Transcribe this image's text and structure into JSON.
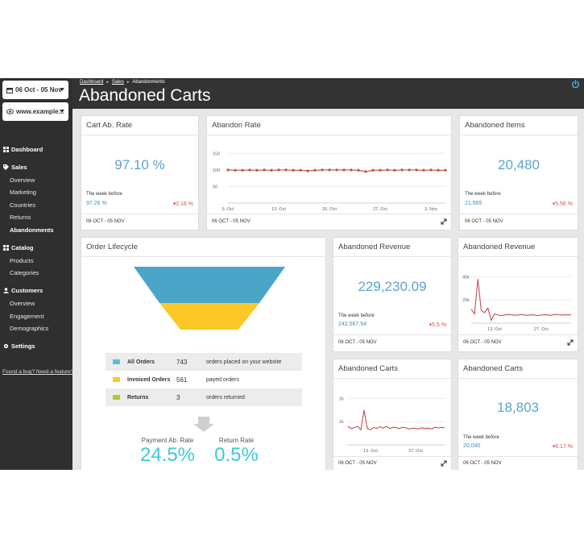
{
  "sidebar": {
    "date_range": "06 Oct - 05 Nov",
    "site": "www.example...",
    "sections": [
      {
        "label": "Dashboard",
        "icon": "grid-icon",
        "items": []
      },
      {
        "label": "Sales",
        "icon": "tag-icon",
        "items": [
          "Overview",
          "Marketing",
          "Countries",
          "Returns",
          "Abandonments"
        ]
      },
      {
        "label": "Catalog",
        "icon": "catalog-icon",
        "items": [
          "Products",
          "Categories"
        ]
      },
      {
        "label": "Customers",
        "icon": "user-icon",
        "items": [
          "Overview",
          "Engagement",
          "Demographics"
        ]
      },
      {
        "label": "Settings",
        "icon": "gear-icon",
        "items": []
      }
    ],
    "bug_link": "Found a bug? Need a feature?"
  },
  "header": {
    "breadcrumbs": [
      "Dashboard",
      "Sales",
      "Abandonments"
    ],
    "title": "Abandoned Carts"
  },
  "cards": {
    "cart_ab_rate": {
      "title": "Cart Ab. Rate",
      "value": "97.10 %",
      "week_before_label": "The week before",
      "week_before_value": "97.26 %",
      "change": "0.16 %",
      "footer": "06 OCT - 05 NOV"
    },
    "abandon_rate": {
      "title": "Abandon Rate",
      "footer": "06 OCT - 05 NOV",
      "y_ticks": [
        "150",
        "100",
        "50"
      ],
      "x_ticks": [
        "6. Oct",
        "13. Oct",
        "20. Oct",
        "27. Oct",
        "3. Nov"
      ]
    },
    "abandoned_items": {
      "title": "Abandoned Items",
      "value": "20,480",
      "week_before_label": "The week before",
      "week_before_value": "21,685",
      "change": "5.56 %",
      "footer": "06 OCT - 05 NOV"
    },
    "order_lifecycle": {
      "title": "Order Lifecycle",
      "rows": [
        {
          "name": "All Orders",
          "count": "743",
          "desc": "orders placed on your website",
          "color": "#4dc3dc"
        },
        {
          "name": "Invoiced Orders",
          "count": "561",
          "desc": "payed orders",
          "color": "#f9c82b"
        },
        {
          "name": "Returns",
          "count": "3",
          "desc": "orders returned",
          "color": "#b5c431"
        }
      ],
      "payment_label": "Payment Ab. Rate",
      "payment_value": "24.5%",
      "return_label": "Return Rate",
      "return_value": "0.5%"
    },
    "abandoned_revenue_num": {
      "title": "Abandoned Revenue",
      "value": "229,230.09",
      "week_before_label": "The week before",
      "week_before_value": "242,567.54",
      "change": "5.5 %",
      "footer": "06 OCT - 05 NOV"
    },
    "abandoned_revenue_chart": {
      "title": "Abandoned Revenue",
      "footer": "06 OCT - 05 NOV",
      "y_ticks": [
        "40k",
        "20k"
      ],
      "x_ticks": [
        "13. Oct",
        "27. Oct"
      ]
    },
    "abandoned_carts_chart": {
      "title": "Abandoned Carts",
      "footer": "06 OCT - 05 NOV",
      "y_ticks": [
        "2k",
        "1k"
      ],
      "x_ticks": [
        "13. Oct",
        "27. Oct"
      ]
    },
    "abandoned_carts_num": {
      "title": "Abandoned Carts",
      "value": "18,803",
      "week_before_label": "The week before",
      "week_before_value": "20,040",
      "change": "6.17 %",
      "footer": "06 OCT - 05 NOV"
    }
  },
  "chart_data": [
    {
      "type": "line",
      "title": "Abandon Rate",
      "x": [
        "6. Oct",
        "7. Oct",
        "8. Oct",
        "9. Oct",
        "10. Oct",
        "11. Oct",
        "12. Oct",
        "13. Oct",
        "14. Oct",
        "15. Oct",
        "16. Oct",
        "17. Oct",
        "18. Oct",
        "19. Oct",
        "20. Oct",
        "21. Oct",
        "22. Oct",
        "23. Oct",
        "24. Oct",
        "25. Oct",
        "26. Oct",
        "27. Oct",
        "28. Oct",
        "29. Oct",
        "30. Oct",
        "31. Oct",
        "1. Nov",
        "2. Nov",
        "3. Nov",
        "4. Nov",
        "5. Nov"
      ],
      "series": [
        {
          "values": [
            100,
            99,
            99,
            100,
            99,
            100,
            99,
            100,
            100,
            99,
            99,
            97,
            99,
            100,
            100,
            100,
            100,
            100,
            99,
            95,
            99,
            99,
            100,
            99,
            100,
            100,
            100,
            99,
            100,
            99,
            99
          ]
        }
      ],
      "ylim": [
        0,
        175
      ],
      "color": "#c0504d"
    },
    {
      "type": "line",
      "title": "Abandoned Revenue",
      "x_ticks": [
        "13. Oct",
        "27. Oct"
      ],
      "series": [
        {
          "values": [
            12000,
            8000,
            38000,
            11000,
            9000,
            13000,
            2500,
            8000,
            7000,
            6500,
            7000,
            7500,
            7200,
            6800,
            7000,
            7500,
            7000,
            6800,
            7200,
            7000,
            6600,
            7000,
            7200,
            7000,
            6800,
            7500,
            7300,
            7000,
            7200,
            7100,
            7300
          ]
        }
      ],
      "ylim": [
        0,
        50000
      ],
      "color": "#c0504d"
    },
    {
      "type": "line",
      "title": "Abandoned Carts",
      "x_ticks": [
        "13. Oct",
        "27. Oct"
      ],
      "series": [
        {
          "values": [
            800,
            700,
            750,
            800,
            650,
            1500,
            700,
            650,
            750,
            700,
            780,
            720,
            800,
            700,
            760,
            740,
            700,
            760,
            730,
            680,
            720,
            700,
            690,
            740,
            700,
            720,
            680,
            760,
            730,
            750,
            740
          ]
        }
      ],
      "ylim": [
        0,
        2500
      ],
      "color": "#c0504d"
    }
  ]
}
